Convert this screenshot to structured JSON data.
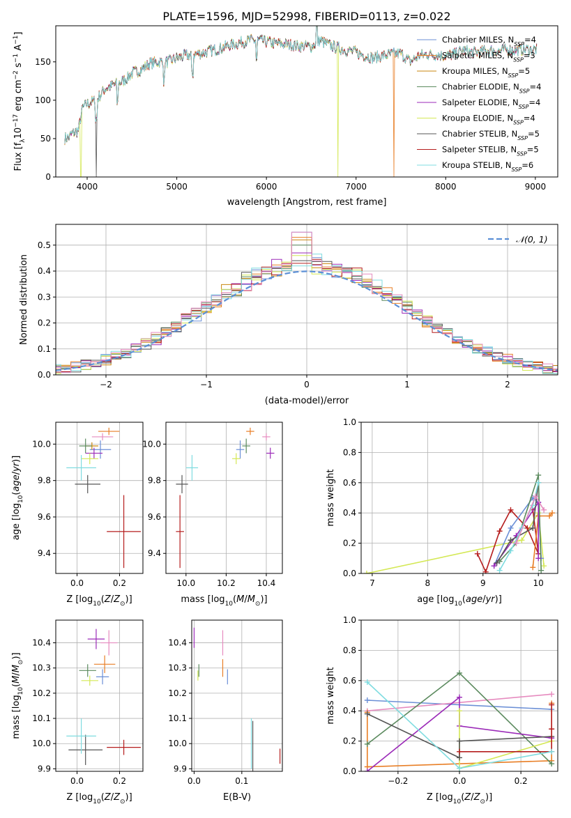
{
  "title": "PLATE=1596, MJD=52998, FIBERID=0113, z=0.022",
  "colors": {
    "Chabrier MILES": "#6b8fd6",
    "Salpeter MILES": "#e87e25",
    "Kroupa MILES": "#c9860e",
    "Chabrier ELODIE": "#5b8a5e",
    "Salpeter ELODIE": "#9b2ab8",
    "Kroupa ELODIE": "#d4e855",
    "Chabrier STELIB": "#555555",
    "Salpeter STELIB": "#b51d1d",
    "Kroupa STELIB": "#7fdce0",
    "extra_pink": "#e68bbf",
    "normal_curve": "#5b8fd6"
  },
  "chart_data": [
    {
      "id": "spectrum",
      "type": "line",
      "xlabel": "wavelength [Angstrom, rest frame]",
      "ylabel": "Flux [f",
      "xlim": [
        3650,
        9250
      ],
      "ylim": [
        0,
        197
      ],
      "xticks": [
        4000,
        5000,
        6000,
        7000,
        8000,
        9000
      ],
      "yticks": [
        0,
        50,
        100,
        150
      ],
      "grid": false,
      "legend_position": "top-right",
      "legend": [
        {
          "name": "Chabrier MILES",
          "nssp": "4"
        },
        {
          "name": "Salpeter MILES",
          "nssp": "3"
        },
        {
          "name": "Kroupa MILES",
          "nssp": "5"
        },
        {
          "name": "Chabrier ELODIE",
          "nssp": "4"
        },
        {
          "name": "Salpeter ELODIE",
          "nssp": "4"
        },
        {
          "name": "Kroupa ELODIE",
          "nssp": "4"
        },
        {
          "name": "Chabrier STELIB",
          "nssp": "5"
        },
        {
          "name": "Salpeter STELIB",
          "nssp": "5"
        },
        {
          "name": "Kroupa STELIB",
          "nssp": "6"
        }
      ],
      "continuum": [
        [
          3750,
          50
        ],
        [
          3800,
          52
        ],
        [
          3850,
          58
        ],
        [
          3900,
          60
        ],
        [
          3950,
          90
        ],
        [
          4000,
          95
        ],
        [
          4100,
          100
        ],
        [
          4200,
          115
        ],
        [
          4300,
          120
        ],
        [
          4400,
          125
        ],
        [
          4500,
          135
        ],
        [
          4600,
          140
        ],
        [
          4700,
          148
        ],
        [
          4800,
          150
        ],
        [
          4900,
          150
        ],
        [
          5000,
          155
        ],
        [
          5100,
          158
        ],
        [
          5200,
          160
        ],
        [
          5300,
          162
        ],
        [
          5400,
          165
        ],
        [
          5500,
          168
        ],
        [
          5600,
          172
        ],
        [
          5700,
          175
        ],
        [
          5800,
          178
        ],
        [
          5900,
          178
        ],
        [
          6000,
          176
        ],
        [
          6100,
          174
        ],
        [
          6200,
          173
        ],
        [
          6300,
          172
        ],
        [
          6400,
          170
        ],
        [
          6500,
          170
        ],
        [
          6600,
          178
        ],
        [
          6700,
          172
        ],
        [
          6800,
          168
        ],
        [
          6900,
          165
        ],
        [
          7000,
          162
        ],
        [
          7100,
          158
        ],
        [
          7200,
          155
        ],
        [
          7300,
          158
        ],
        [
          7400,
          160
        ],
        [
          7500,
          161
        ],
        [
          7600,
          150
        ],
        [
          7700,
          158
        ],
        [
          7800,
          160
        ],
        [
          7900,
          159
        ],
        [
          8000,
          158
        ],
        [
          8100,
          160
        ],
        [
          8200,
          165
        ],
        [
          8300,
          162
        ],
        [
          8400,
          163
        ],
        [
          8500,
          165
        ],
        [
          8600,
          164
        ],
        [
          8700,
          166
        ],
        [
          8800,
          165
        ],
        [
          8900,
          166
        ],
        [
          9000,
          166
        ]
      ],
      "dips": [
        [
          4102,
          0,
          "Chabrier STELIB"
        ],
        [
          3930,
          0,
          "Kroupa ELODIE"
        ],
        [
          6800,
          0,
          "Kroupa ELODIE"
        ],
        [
          7420,
          0,
          "Salpeter MILES"
        ]
      ]
    },
    {
      "id": "residuals",
      "type": "histogram",
      "xlabel": "(data-model)/error",
      "ylabel": "Normed distribution",
      "xlim": [
        -2.5,
        2.5
      ],
      "ylim": [
        0,
        0.58
      ],
      "xticks": [
        -2,
        -1,
        0,
        1,
        2
      ],
      "yticks": [
        0.0,
        0.1,
        0.2,
        0.3,
        0.4,
        0.5
      ],
      "grid": true,
      "legend_position": "top-right",
      "normal_label": "𝒩(0, 1)",
      "bin_width": 0.1,
      "peak_values": [
        0.55,
        0.53,
        0.52,
        0.5,
        0.47,
        0.46,
        0.44,
        0.43,
        0.42
      ]
    },
    {
      "id": "age_vs_Z",
      "type": "errorbar",
      "xlabel": "Z [log",
      "ylabel": "age  [log",
      "xlim": [
        -0.1,
        0.31
      ],
      "ylim": [
        9.29,
        10.12
      ],
      "xticks": [
        0.0,
        0.2
      ],
      "yticks": [
        9.4,
        9.6,
        9.8,
        10.0
      ],
      "points": [
        {
          "series": "Chabrier MILES",
          "x": 0.11,
          "y": 9.97,
          "xerr": 0.05,
          "yerr": 0.05
        },
        {
          "series": "Salpeter MILES",
          "x": 0.15,
          "y": 10.07,
          "xerr": 0.05,
          "yerr": 0.02
        },
        {
          "series": "Kroupa MILES",
          "x": 0.07,
          "y": 9.99,
          "xerr": 0.03,
          "yerr": 0.02
        },
        {
          "series": "Chabrier ELODIE",
          "x": 0.04,
          "y": 9.99,
          "xerr": 0.03,
          "yerr": 0.04
        },
        {
          "series": "Salpeter ELODIE",
          "x": 0.08,
          "y": 9.95,
          "xerr": 0.04,
          "yerr": 0.03
        },
        {
          "series": "Kroupa ELODIE",
          "x": 0.06,
          "y": 9.92,
          "xerr": 0.04,
          "yerr": 0.03
        },
        {
          "series": "Chabrier STELIB",
          "x": 0.05,
          "y": 9.78,
          "xerr": 0.06,
          "yerr": 0.05
        },
        {
          "series": "Salpeter STELIB",
          "x": 0.22,
          "y": 9.52,
          "xerr": 0.08,
          "yerr": 0.2
        },
        {
          "series": "Kroupa STELIB",
          "x": 0.02,
          "y": 9.87,
          "xerr": 0.07,
          "yerr": 0.07
        },
        {
          "series": "extra_pink",
          "x": 0.12,
          "y": 10.04,
          "xerr": 0.05,
          "yerr": 0.02
        }
      ]
    },
    {
      "id": "age_vs_mass",
      "type": "errorbar",
      "xlabel": "mass [log",
      "ylabel": "",
      "xlim": [
        9.9,
        10.48
      ],
      "ylim": [
        9.29,
        10.12
      ],
      "xticks": [
        10.0,
        10.2,
        10.4
      ],
      "yticks": [
        9.4,
        9.6,
        9.8,
        10.0
      ],
      "points": [
        {
          "series": "Chabrier MILES",
          "x": 10.27,
          "y": 9.97,
          "xerr": 0.02,
          "yerr": 0.05
        },
        {
          "series": "Salpeter MILES",
          "x": 10.32,
          "y": 10.07,
          "xerr": 0.02,
          "yerr": 0.02
        },
        {
          "series": "Chabrier ELODIE",
          "x": 10.3,
          "y": 9.99,
          "xerr": 0.02,
          "yerr": 0.04
        },
        {
          "series": "Salpeter ELODIE",
          "x": 10.42,
          "y": 9.95,
          "xerr": 0.02,
          "yerr": 0.03
        },
        {
          "series": "Kroupa ELODIE",
          "x": 10.25,
          "y": 9.92,
          "xerr": 0.02,
          "yerr": 0.03
        },
        {
          "series": "Chabrier STELIB",
          "x": 9.98,
          "y": 9.78,
          "xerr": 0.03,
          "yerr": 0.05
        },
        {
          "series": "Salpeter STELIB",
          "x": 9.97,
          "y": 9.52,
          "xerr": 0.02,
          "yerr": 0.2
        },
        {
          "series": "Kroupa STELIB",
          "x": 10.03,
          "y": 9.87,
          "xerr": 0.03,
          "yerr": 0.07
        },
        {
          "series": "extra_pink",
          "x": 10.4,
          "y": 10.04,
          "xerr": 0.02,
          "yerr": 0.02
        }
      ]
    },
    {
      "id": "weight_vs_age",
      "type": "line",
      "xlabel": "age  [log",
      "ylabel": "mass weight",
      "xlim": [
        6.8,
        10.35
      ],
      "ylim": [
        0,
        1.0
      ],
      "xticks": [
        7,
        8,
        9,
        10
      ],
      "yticks": [
        0.0,
        0.2,
        0.4,
        0.6,
        0.8,
        1.0
      ],
      "grid": true,
      "series": [
        {
          "series": "Kroupa ELODIE",
          "x": [
            6.9,
            9.7,
            10.0,
            10.1
          ],
          "y": [
            0.0,
            0.22,
            0.4,
            0.05
          ]
        },
        {
          "series": "Salpeter STELIB",
          "x": [
            8.9,
            9.05,
            9.3,
            9.5,
            9.8,
            10.0,
            9.9
          ],
          "y": [
            0.13,
            0.01,
            0.28,
            0.42,
            0.3,
            0.13,
            0.42
          ]
        },
        {
          "series": "Chabrier MILES",
          "x": [
            9.2,
            9.5,
            9.9,
            10.0,
            10.05
          ],
          "y": [
            0.05,
            0.3,
            0.5,
            0.47,
            0.1
          ]
        },
        {
          "series": "Salpeter MILES",
          "x": [
            9.9,
            10.0,
            10.2,
            10.25
          ],
          "y": [
            0.04,
            0.38,
            0.38,
            0.4
          ]
        },
        {
          "series": "Chabrier ELODIE",
          "x": [
            9.3,
            9.6,
            10.0,
            10.05
          ],
          "y": [
            0.08,
            0.2,
            0.65,
            0.02
          ]
        },
        {
          "series": "Salpeter ELODIE",
          "x": [
            9.2,
            9.6,
            10.0,
            10.0
          ],
          "y": [
            0.05,
            0.25,
            0.47,
            0.1
          ]
        },
        {
          "series": "Chabrier STELIB",
          "x": [
            9.25,
            9.5,
            9.9,
            10.0
          ],
          "y": [
            0.07,
            0.22,
            0.3,
            0.6
          ]
        },
        {
          "series": "Kroupa STELIB",
          "x": [
            9.3,
            9.5,
            9.7,
            9.9,
            10.0
          ],
          "y": [
            0.02,
            0.15,
            0.3,
            0.45,
            0.6
          ]
        },
        {
          "series": "extra_pink",
          "x": [
            9.6,
            9.95,
            10.1
          ],
          "y": [
            0.2,
            0.51,
            0.42
          ]
        }
      ]
    },
    {
      "id": "mass_vs_Z",
      "type": "errorbar",
      "xlabel": "Z [log",
      "ylabel": "mass [log",
      "xlim": [
        -0.1,
        0.31
      ],
      "ylim": [
        9.89,
        10.49
      ],
      "xticks": [
        0.0,
        0.2
      ],
      "yticks": [
        9.9,
        10.0,
        10.1,
        10.2,
        10.3,
        10.4
      ],
      "points": [
        {
          "series": "Chabrier MILES",
          "x": 0.12,
          "y": 10.265,
          "xerr": 0.03,
          "yerr": 0.03
        },
        {
          "series": "Salpeter MILES",
          "x": 0.13,
          "y": 10.315,
          "xerr": 0.05,
          "yerr": 0.035
        },
        {
          "series": "Chabrier ELODIE",
          "x": 0.05,
          "y": 10.29,
          "xerr": 0.04,
          "yerr": 0.025
        },
        {
          "series": "Salpeter ELODIE",
          "x": 0.09,
          "y": 10.415,
          "xerr": 0.04,
          "yerr": 0.04
        },
        {
          "series": "Kroupa ELODIE",
          "x": 0.06,
          "y": 10.25,
          "xerr": 0.04,
          "yerr": 0.02
        },
        {
          "series": "Chabrier STELIB",
          "x": 0.04,
          "y": 9.975,
          "xerr": 0.08,
          "yerr": 0.06
        },
        {
          "series": "Salpeter STELIB",
          "x": 0.22,
          "y": 9.985,
          "xerr": 0.08,
          "yerr": 0.03
        },
        {
          "series": "Kroupa STELIB",
          "x": 0.02,
          "y": 10.03,
          "xerr": 0.07,
          "yerr": 0.07
        },
        {
          "series": "extra_pink",
          "x": 0.15,
          "y": 10.4,
          "xerr": 0.04,
          "yerr": 0.05
        }
      ]
    },
    {
      "id": "mass_vs_ebv",
      "type": "errorbar",
      "xlabel": "E(B-V)",
      "ylabel": "",
      "xlim": [
        -0.005,
        0.185
      ],
      "ylim": [
        9.89,
        10.49
      ],
      "xticks": [
        0.0,
        0.1
      ],
      "yticks": [
        9.9,
        10.0,
        10.1,
        10.2,
        10.3,
        10.4
      ],
      "points": [
        {
          "series": "Chabrier MILES",
          "x": 0.07,
          "y": 10.265,
          "xerr": 0.0,
          "yerr": 0.03
        },
        {
          "series": "Salpeter MILES",
          "x": 0.06,
          "y": 10.3,
          "xerr": 0.0,
          "yerr": 0.035
        },
        {
          "series": "Chabrier ELODIE",
          "x": 0.01,
          "y": 10.29,
          "xerr": 0.0,
          "yerr": 0.025
        },
        {
          "series": "Salpeter ELODIE",
          "x": 0.0,
          "y": 10.42,
          "xerr": 0.0,
          "yerr": 0.04
        },
        {
          "series": "Kroupa ELODIE",
          "x": 0.008,
          "y": 10.27,
          "xerr": 0.0,
          "yerr": 0.02
        },
        {
          "series": "Chabrier STELIB",
          "x": 0.123,
          "y": 9.99,
          "xerr": 0.0,
          "yerr": 0.1
        },
        {
          "series": "Salpeter STELIB",
          "x": 0.18,
          "y": 9.95,
          "xerr": 0.0,
          "yerr": 0.03
        },
        {
          "series": "Kroupa STELIB",
          "x": 0.12,
          "y": 10.0,
          "xerr": 0.0,
          "yerr": 0.1
        },
        {
          "series": "extra_pink",
          "x": 0.06,
          "y": 10.4,
          "xerr": 0.0,
          "yerr": 0.05
        }
      ]
    },
    {
      "id": "weight_vs_Z",
      "type": "line",
      "xlabel": "Z [log",
      "ylabel": "mass weight",
      "xlim": [
        -0.32,
        0.32
      ],
      "ylim": [
        0,
        1.0
      ],
      "xticks": [
        -0.2,
        0.0,
        0.2
      ],
      "yticks": [
        0.0,
        0.2,
        0.4,
        0.6,
        0.8,
        1.0
      ],
      "grid": true,
      "series": [
        {
          "series": "Chabrier MILES",
          "x": [
            -0.3,
            0.3
          ],
          "y": [
            0.47,
            0.41
          ]
        },
        {
          "series": "extra_pink",
          "x": [
            -0.3,
            0.3
          ],
          "y": [
            0.4,
            0.51
          ]
        },
        {
          "series": "Salpeter MILES",
          "x": [
            -0.3,
            -0.3,
            0.3,
            0.3
          ],
          "y": [
            0.39,
            0.03,
            0.07,
            0.45
          ]
        },
        {
          "series": "Chabrier ELODIE",
          "x": [
            -0.3,
            0.0,
            0.3
          ],
          "y": [
            0.18,
            0.65,
            0.05
          ]
        },
        {
          "series": "Salpeter ELODIE",
          "x": [
            -0.3,
            0.0,
            0.0,
            0.3
          ],
          "y": [
            0.0,
            0.49,
            0.3,
            0.22
          ]
        },
        {
          "series": "Kroupa ELODIE",
          "x": [
            0.0,
            0.0,
            0.3
          ],
          "y": [
            0.4,
            0.02,
            0.2
          ]
        },
        {
          "series": "Chabrier STELIB",
          "x": [
            -0.3,
            0.0,
            0.0,
            0.3
          ],
          "y": [
            0.38,
            0.09,
            0.2,
            0.23
          ]
        },
        {
          "series": "Salpeter STELIB",
          "x": [
            0.0,
            0.3,
            0.3,
            0.3
          ],
          "y": [
            0.13,
            0.13,
            0.28,
            0.44
          ]
        },
        {
          "series": "Kroupa STELIB",
          "x": [
            -0.3,
            0.0,
            0.3
          ],
          "y": [
            0.59,
            0.02,
            0.13
          ]
        }
      ]
    }
  ]
}
